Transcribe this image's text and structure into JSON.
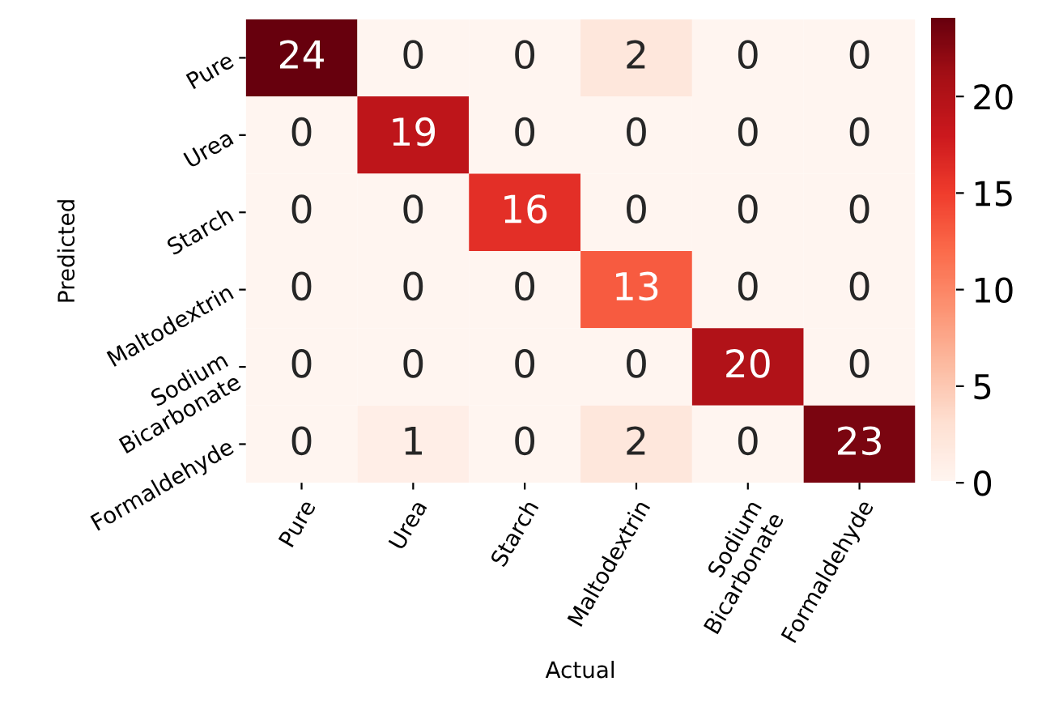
{
  "chart_data": {
    "type": "heatmap",
    "xlabel": "Actual",
    "ylabel": "Predicted",
    "categories": [
      "Pure",
      "Urea",
      "Starch",
      "Maltodextrin",
      "Sodium\nBicarbonate",
      "Formaldehyde"
    ],
    "y_categories": [
      "Pure",
      "Urea",
      "Starch",
      "Maltodextrin",
      "Sodium\nBicarbonate",
      "Formaldehyde"
    ],
    "cells": [
      [
        24,
        0,
        0,
        2,
        0,
        0
      ],
      [
        0,
        19,
        0,
        0,
        0,
        0
      ],
      [
        0,
        0,
        16,
        0,
        0,
        0
      ],
      [
        0,
        0,
        0,
        13,
        0,
        0
      ],
      [
        0,
        0,
        0,
        0,
        20,
        0
      ],
      [
        0,
        1,
        0,
        2,
        0,
        23
      ]
    ],
    "clim": [
      0,
      24
    ],
    "cticks": [
      0,
      5,
      10,
      15,
      20
    ],
    "data_labels": true
  }
}
